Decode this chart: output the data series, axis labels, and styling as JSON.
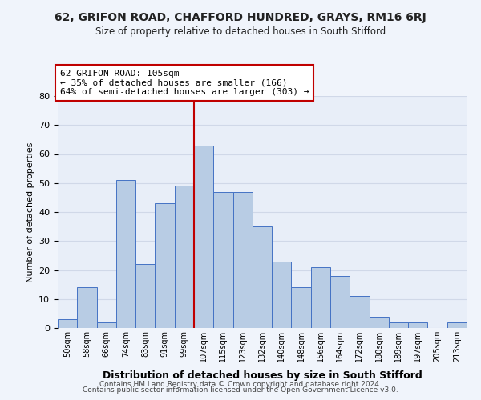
{
  "title": "62, GRIFON ROAD, CHAFFORD HUNDRED, GRAYS, RM16 6RJ",
  "subtitle": "Size of property relative to detached houses in South Stifford",
  "xlabel": "Distribution of detached houses by size in South Stifford",
  "ylabel": "Number of detached properties",
  "bar_labels": [
    "50sqm",
    "58sqm",
    "66sqm",
    "74sqm",
    "83sqm",
    "91sqm",
    "99sqm",
    "107sqm",
    "115sqm",
    "123sqm",
    "132sqm",
    "140sqm",
    "148sqm",
    "156sqm",
    "164sqm",
    "172sqm",
    "180sqm",
    "189sqm",
    "197sqm",
    "205sqm",
    "213sqm"
  ],
  "bar_values": [
    3,
    14,
    2,
    51,
    22,
    43,
    49,
    63,
    47,
    47,
    35,
    23,
    14,
    21,
    18,
    11,
    4,
    2,
    2,
    0,
    2
  ],
  "bar_color": "#b8cce4",
  "bar_edge_color": "#4472c4",
  "vline_color": "#c00000",
  "annotation_line1": "62 GRIFON ROAD: 105sqm",
  "annotation_line2": "← 35% of detached houses are smaller (166)",
  "annotation_line3": "64% of semi-detached houses are larger (303) →",
  "annotation_box_color": "#c00000",
  "ylim": [
    0,
    80
  ],
  "yticks": [
    0,
    10,
    20,
    30,
    40,
    50,
    60,
    70,
    80
  ],
  "grid_color": "#d0d8e8",
  "bg_color": "#e8eef8",
  "fig_bg_color": "#f0f4fb",
  "footer1": "Contains HM Land Registry data © Crown copyright and database right 2024.",
  "footer2": "Contains public sector information licensed under the Open Government Licence v3.0."
}
